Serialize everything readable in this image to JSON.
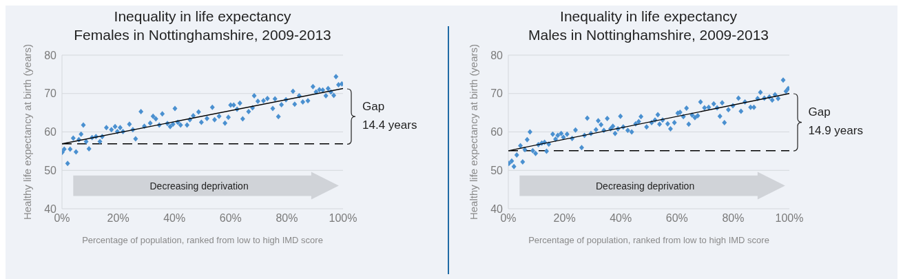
{
  "chart_data": [
    {
      "type": "scatter",
      "title": "Inequality in life expectancy",
      "subtitle": "Females in Nottinghamshire, 2009-2013",
      "xlabel": "Percentage of population, ranked from low to high IMD score",
      "ylabel": "Healthy life expectancy at birth (years)",
      "xlim": [
        0,
        100
      ],
      "xticks": [
        {
          "value": 0,
          "label": "0%"
        },
        {
          "value": 20,
          "label": "20%"
        },
        {
          "value": 40,
          "label": "40%"
        },
        {
          "value": 60,
          "label": "60%"
        },
        {
          "value": 80,
          "label": "80%"
        },
        {
          "value": 100,
          "label": "100%"
        }
      ],
      "ylim": [
        40,
        80
      ],
      "yticks": [
        40,
        50,
        60,
        70,
        80
      ],
      "grid": "y",
      "series": [
        {
          "type": "scatter",
          "marker": "diamond",
          "color": "#4a90d0",
          "x": [
            0.1,
            0.8,
            2.0,
            2.9,
            4.0,
            5.0,
            6.0,
            6.8,
            7.6,
            8.6,
            9.6,
            10.7,
            12.1,
            13.5,
            14.3,
            15.8,
            17.6,
            18.9,
            19.7,
            20.7,
            21.7,
            24.0,
            25.2,
            26.2,
            28.1,
            29.3,
            31.4,
            32.4,
            33.4,
            34.6,
            35.7,
            37.5,
            38.5,
            39.5,
            40.2,
            41.2,
            42.2,
            44.5,
            45.5,
            46.7,
            48.6,
            49.6,
            51.6,
            53.5,
            54.3,
            55.9,
            58.0,
            59.2,
            60.0,
            61.1,
            62.3,
            63.3,
            64.3,
            66.4,
            67.8,
            68.4,
            69.7,
            71.7,
            73.1,
            75.0,
            75.8,
            77.0,
            78.1,
            79.7,
            82.2,
            82.8,
            84.4,
            85.7,
            87.5,
            89.3,
            90.4,
            91.6,
            92.8,
            93.9,
            94.7,
            95.7,
            96.7,
            97.5,
            98.4,
            99.6
          ],
          "values": [
            54.7,
            55.5,
            51.8,
            55.5,
            58.4,
            54.8,
            58.0,
            59.4,
            61.8,
            57.5,
            55.6,
            58.5,
            58.8,
            57.5,
            58.8,
            61.1,
            60.6,
            61.4,
            60.1,
            61.1,
            60.1,
            62.0,
            60.6,
            58.2,
            65.3,
            61.5,
            62.3,
            64.1,
            63.4,
            61.8,
            64.7,
            62.2,
            61.4,
            62.0,
            66.1,
            62.5,
            61.8,
            61.8,
            63.2,
            64.2,
            65.2,
            62.5,
            63.5,
            66.4,
            63.2,
            64.1,
            62.3,
            63.8,
            67.0,
            67.0,
            65.9,
            67.5,
            63.4,
            65.3,
            66.3,
            69.4,
            68.0,
            68.1,
            68.7,
            66.1,
            68.6,
            64.0,
            67.1,
            68.4,
            70.6,
            67.2,
            69.4,
            67.8,
            68.1,
            71.8,
            70.4,
            71.0,
            70.9,
            69.4,
            71.3,
            70.4,
            69.5,
            74.4,
            72.3,
            72.5
          ]
        },
        {
          "type": "line",
          "marker": "none",
          "color": "#000000",
          "x": [
            0,
            100
          ],
          "values": [
            56.9,
            71.3
          ]
        }
      ],
      "ref_lines": [
        {
          "axis": "y",
          "value": 56.9,
          "color": "#000000",
          "line_style": "dashed"
        }
      ],
      "annotations": [
        "Decreasing deprivation",
        "Gap",
        "14.4 years"
      ]
    },
    {
      "type": "scatter",
      "title": "Inequality in life expectancy",
      "subtitle": "Males in Nottinghamshire, 2009-2013",
      "xlabel": "Percentage of population, ranked from low to high IMD score",
      "ylabel": "Healthy life expectancy at birth (years)",
      "xlim": [
        0,
        100
      ],
      "xticks": [
        {
          "value": 0,
          "label": "0%"
        },
        {
          "value": 20,
          "label": "20%"
        },
        {
          "value": 40,
          "label": "40%"
        },
        {
          "value": 60,
          "label": "60%"
        },
        {
          "value": 80,
          "label": "80%"
        },
        {
          "value": 100,
          "label": "100%"
        }
      ],
      "ylim": [
        40,
        80
      ],
      "yticks": [
        40,
        50,
        60,
        70,
        80
      ],
      "grid": "y",
      "series": [
        {
          "type": "scatter",
          "marker": "diamond",
          "color": "#4a90d0",
          "x": [
            0.2,
            1.2,
            2.0,
            3.0,
            4.3,
            5.1,
            5.9,
            6.7,
            7.7,
            8.7,
            9.7,
            10.7,
            11.9,
            12.9,
            13.6,
            14.4,
            15.8,
            16.8,
            17.6,
            18.8,
            19.6,
            20.9,
            22.7,
            23.9,
            26.1,
            27.1,
            28.1,
            29.4,
            31.2,
            32.0,
            33.0,
            34.0,
            35.2,
            36.4,
            37.2,
            38.0,
            39.0,
            39.9,
            40.9,
            42.5,
            43.9,
            45.3,
            46.4,
            47.2,
            49.2,
            51.0,
            52.2,
            53.2,
            53.8,
            54.9,
            56.7,
            57.7,
            59.1,
            60.3,
            61.1,
            62.3,
            63.4,
            64.2,
            65.4,
            66.4,
            67.4,
            68.4,
            69.8,
            71.3,
            73.1,
            74.3,
            75.3,
            76.1,
            76.9,
            78.3,
            79.9,
            81.9,
            82.8,
            84.2,
            86.2,
            87.4,
            88.7,
            89.7,
            91.1,
            92.9,
            93.9,
            94.9,
            96.0,
            97.8,
            98.8,
            99.6
          ],
          "values": [
            51.8,
            52.4,
            51.0,
            54.0,
            56.4,
            52.2,
            55.4,
            58.0,
            60.0,
            55.1,
            54.4,
            56.7,
            57.1,
            57.3,
            55.0,
            56.8,
            59.4,
            58.1,
            59.1,
            59.6,
            58.6,
            59.4,
            58.3,
            60.5,
            55.9,
            59.1,
            63.6,
            59.6,
            60.6,
            62.9,
            61.9,
            60.4,
            63.5,
            60.8,
            61.5,
            59.6,
            60.8,
            64.1,
            61.3,
            60.4,
            60.0,
            62.1,
            62.7,
            64.0,
            61.3,
            62.4,
            63.1,
            64.5,
            62.0,
            63.1,
            62.1,
            60.8,
            62.4,
            64.9,
            65.1,
            64.0,
            66.2,
            62.0,
            64.4,
            63.7,
            64.2,
            67.8,
            66.3,
            66.4,
            67.3,
            66.3,
            64.1,
            67.6,
            62.4,
            65.8,
            66.8,
            68.8,
            65.4,
            67.8,
            66.4,
            66.4,
            68.7,
            70.3,
            68.8,
            69.1,
            68.3,
            69.7,
            68.7,
            73.5,
            70.6,
            71.3
          ]
        },
        {
          "type": "line",
          "marker": "none",
          "color": "#000000",
          "x": [
            0,
            100
          ],
          "values": [
            55.1,
            70.0
          ]
        }
      ],
      "ref_lines": [
        {
          "axis": "y",
          "value": 55.1,
          "color": "#000000",
          "line_style": "dashed"
        }
      ],
      "annotations": [
        "Decreasing deprivation",
        "Gap",
        "14.9 years"
      ]
    }
  ]
}
